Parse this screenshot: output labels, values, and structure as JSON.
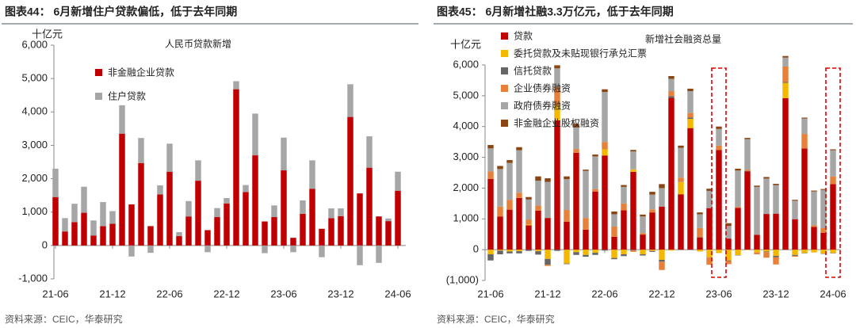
{
  "chart_data": [
    {
      "type": "stacked-bar",
      "title": "图表44： 6月新增住户贷款偏低，低于去年同期",
      "inner_title": "人民币贷款新增",
      "y_label": "十亿元",
      "source": "资料来源：CEIC，华泰研究",
      "categories": [
        "21-06",
        null,
        null,
        null,
        null,
        null,
        "21-12",
        null,
        null,
        null,
        null,
        null,
        "22-06",
        null,
        null,
        null,
        null,
        null,
        "22-12",
        null,
        null,
        null,
        null,
        null,
        "23-06",
        null,
        null,
        null,
        null,
        null,
        "23-12",
        null,
        null,
        null,
        null,
        null,
        "24-06"
      ],
      "ylim": [
        -1000,
        6000
      ],
      "yticks": [
        {
          "value": -1000,
          "label": "-1,000"
        },
        0,
        {
          "value": 1000,
          "label": "1,000"
        },
        {
          "value": 2000,
          "label": "2,000"
        },
        {
          "value": 3000,
          "label": "3,000"
        },
        {
          "value": 4000,
          "label": "4,000"
        },
        {
          "value": 5000,
          "label": "5,000"
        },
        {
          "value": 6000,
          "label": "6,000"
        }
      ],
      "series": [
        {
          "name": "非金融企业贷款",
          "color": "#c00000",
          "values": [
            1450,
            420,
            700,
            980,
            300,
            580,
            650,
            3350,
            1230,
            2470,
            580,
            1530,
            2210,
            280,
            870,
            1940,
            460,
            850,
            1260,
            4680,
            1600,
            2700,
            720,
            850,
            2250,
            230,
            950,
            1700,
            500,
            820,
            880,
            3850,
            1560,
            2330,
            870,
            730,
            1640
          ]
        },
        {
          "name": "住户贷款",
          "color": "#a6a6a6",
          "values": [
            850,
            400,
            550,
            780,
            450,
            720,
            380,
            850,
            -330,
            750,
            -220,
            270,
            840,
            120,
            460,
            610,
            -200,
            270,
            160,
            240,
            210,
            1250,
            -230,
            350,
            980,
            -200,
            400,
            850,
            -350,
            290,
            230,
            980,
            -590,
            940,
            -520,
            80,
            570
          ]
        }
      ]
    },
    {
      "type": "stacked-bar",
      "title": "图表45： 6月新增社融3.3万亿元，低于去年同期",
      "inner_title": "新增社会融资总量",
      "y_label": "十亿元",
      "source": "资料来源：CEIC，华泰研究",
      "categories": [
        "21-06",
        null,
        null,
        null,
        null,
        null,
        "21-12",
        null,
        null,
        null,
        null,
        null,
        "22-06",
        null,
        null,
        null,
        null,
        null,
        "22-12",
        null,
        null,
        null,
        null,
        null,
        "23-06",
        null,
        null,
        null,
        null,
        null,
        "23-12",
        null,
        null,
        null,
        null,
        null,
        "24-06"
      ],
      "ylim": [
        -1000,
        6000
      ],
      "yticks": [
        {
          "value": -1000,
          "label": "(1,000)"
        },
        0,
        {
          "value": 1000,
          "label": "1,000"
        },
        {
          "value": 2000,
          "label": "2,000"
        },
        {
          "value": 3000,
          "label": "3,000"
        },
        {
          "value": 4000,
          "label": "4,000"
        },
        {
          "value": 5000,
          "label": "5,000"
        },
        {
          "value": 6000,
          "label": "6,000"
        }
      ],
      "series": [
        {
          "name": "贷款",
          "color": "#c00000",
          "values": [
            2300,
            1080,
            1300,
            1680,
            790,
            1270,
            1030,
            4200,
            910,
            3150,
            650,
            1890,
            3060,
            420,
            1280,
            2530,
            490,
            1210,
            1400,
            4930,
            1800,
            3950,
            400,
            1350,
            3240,
            360,
            1360,
            2540,
            480,
            1160,
            1170,
            4920,
            990,
            3290,
            740,
            550,
            2130
          ]
        },
        {
          "name": "委托贷款及未贴现银行承兑汇票",
          "color": "#f5b800",
          "values": [
            -150,
            -30,
            -60,
            -50,
            30,
            -50,
            -300,
            500,
            -450,
            -80,
            -170,
            -100,
            200,
            -270,
            -150,
            80,
            -150,
            -40,
            -330,
            -30,
            400,
            300,
            -60,
            -250,
            -110,
            -350,
            -180,
            -10,
            -90,
            -60,
            -200,
            500,
            -170,
            -110,
            -90,
            -130,
            -110
          ]
        },
        {
          "name": "信托贷款",
          "color": "#666666",
          "values": [
            -200,
            -120,
            -60,
            -70,
            -40,
            -110,
            -190,
            -40,
            -20,
            -90,
            -60,
            -70,
            -30,
            -40,
            -60,
            -20,
            -40,
            -30,
            -60,
            60,
            10,
            40,
            10,
            -10,
            0,
            -20,
            -10,
            20,
            0,
            -20,
            -40,
            30,
            -30,
            -10,
            0,
            -10,
            -10
          ]
        },
        {
          "name": "企业债券融资",
          "color": "#e8803a",
          "values": [
            240,
            320,
            320,
            170,
            160,
            160,
            -40,
            590,
            380,
            120,
            380,
            80,
            240,
            330,
            220,
            -50,
            50,
            100,
            -270,
            160,
            130,
            150,
            290,
            -230,
            140,
            -100,
            30,
            40,
            -60,
            -180,
            -240,
            500,
            -30,
            470,
            50,
            150,
            250
          ]
        },
        {
          "name": "政府债券融资",
          "color": "#a6a6a6",
          "values": [
            750,
            1220,
            1200,
            1380,
            650,
            810,
            1170,
            600,
            1000,
            700,
            1530,
            1060,
            1620,
            400,
            540,
            580,
            540,
            480,
            600,
            400,
            970,
            710,
            450,
            560,
            540,
            410,
            1180,
            990,
            1560,
            1150,
            930,
            290,
            600,
            500,
            1100,
            1240,
            850
          ]
        },
        {
          "name": "非金融企业股权融资",
          "color": "#8b4513",
          "values": [
            110,
            100,
            90,
            100,
            80,
            140,
            120,
            100,
            90,
            120,
            40,
            60,
            90,
            90,
            60,
            50,
            60,
            90,
            130,
            90,
            70,
            80,
            60,
            70,
            80,
            90,
            60,
            40,
            40,
            50,
            40,
            50,
            30,
            30,
            30,
            30,
            30
          ]
        }
      ]
    }
  ]
}
